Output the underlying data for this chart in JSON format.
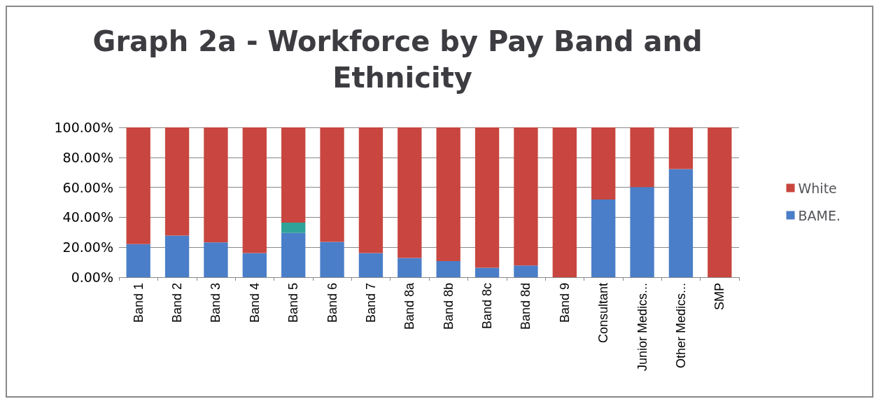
{
  "chart_data": {
    "type": "bar",
    "title": "Graph 2a - Workforce by Pay Band and Ethnicity",
    "categories": [
      "Band 1",
      "Band 2",
      "Band 3",
      "Band 4",
      "Band 5",
      "Band 6",
      "Band 7",
      "Band 8a",
      "Band 8b",
      "Band 8c",
      "Band 8d",
      "Band 9",
      "Consultant",
      "Junior Medics...",
      "Other Medics...",
      "SMP"
    ],
    "stacked": true,
    "series": [
      {
        "name": "BAME.",
        "color": "#4a7ec8",
        "values": [
          22.1,
          27.8,
          23.2,
          16.1,
          29.6,
          23.6,
          16.1,
          12.8,
          10.8,
          6.3,
          7.8,
          0,
          51.9,
          60.2,
          72.2,
          0
        ]
      },
      {
        "color": "#2ea39a",
        "values": [
          0,
          0,
          0,
          0,
          6.8,
          0,
          0,
          0,
          0,
          0,
          0,
          0,
          0,
          0,
          0,
          0
        ]
      },
      {
        "name": "White",
        "color": "#c8463f",
        "values": [
          77.9,
          72.2,
          76.8,
          83.9,
          63.6,
          76.4,
          83.9,
          87.2,
          89.2,
          93.7,
          92.2,
          100,
          48.1,
          39.8,
          27.8,
          100
        ]
      }
    ],
    "ylim": [
      0,
      100
    ],
    "yticks": [
      {
        "value": 0,
        "label": "0.00%"
      },
      {
        "value": 20,
        "label": "20.00%"
      },
      {
        "value": 40,
        "label": "40.00%"
      },
      {
        "value": 60,
        "label": "60.00%"
      },
      {
        "value": 80,
        "label": "80.00%"
      },
      {
        "value": 100,
        "label": "100.00%"
      }
    ],
    "grid": "y",
    "legend": "right"
  }
}
